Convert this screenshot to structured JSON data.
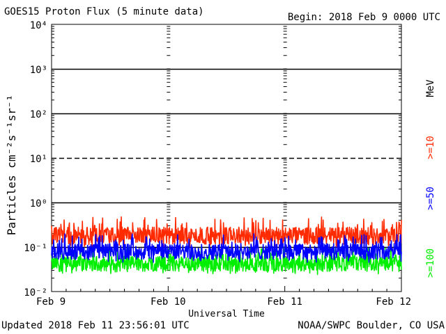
{
  "header": {
    "title": "GOES15 Proton Flux (5 minute data)",
    "begin": "Begin: 2018 Feb 9 0000 UTC"
  },
  "footer": {
    "updated": "Updated 2018 Feb 11 23:56:01 UTC",
    "credit": "NOAA/SWPC Boulder, CO USA"
  },
  "chart_data": {
    "type": "line",
    "title": "GOES15 Proton Flux (5 minute data)",
    "xlabel": "Universal Time",
    "ylabel": "Particles cm⁻²s⁻¹sr⁻¹",
    "y_scale": "log",
    "ylim": [
      0.01,
      10000
    ],
    "x_ticks": [
      "Feb 9",
      "Feb 10",
      "Feb 11",
      "Feb 12"
    ],
    "y_ticks": [
      "10⁻²",
      "10⁻¹",
      "10⁰",
      "10¹",
      "10²",
      "10³",
      "10⁴"
    ],
    "xlim": [
      "2018-02-09",
      "2018-02-12"
    ],
    "unit_label": "MeV",
    "threshold_lines": [
      {
        "value": 1000,
        "style": "solid"
      },
      {
        "value": 100,
        "style": "solid"
      },
      {
        "value": 10,
        "style": "dashed"
      },
      {
        "value": 1,
        "style": "solid"
      },
      {
        "value": 0.1,
        "style": "solid"
      }
    ],
    "series": [
      {
        "name": ">=10",
        "color": "#ff2a00",
        "typical": 0.18,
        "min": 0.1,
        "max": 0.5
      },
      {
        "name": ">=50",
        "color": "#0000ff",
        "typical": 0.08,
        "min": 0.045,
        "max": 0.2
      },
      {
        "name": ">=100",
        "color": "#00ee00",
        "typical": 0.042,
        "min": 0.024,
        "max": 0.1
      }
    ]
  }
}
